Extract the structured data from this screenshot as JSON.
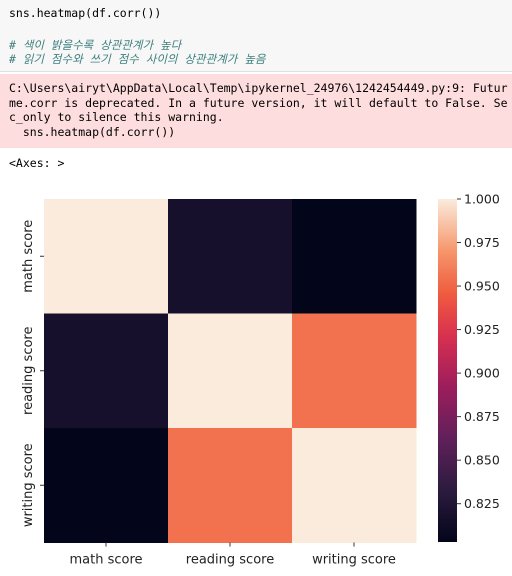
{
  "code": {
    "line1": "sns.heatmap(df.corr())",
    "comment1": "# 색이 밝을수록 상관관계가 높다",
    "comment2": "# 읽기 점수와 쓰기 점수 사이의 상관관계가 높음"
  },
  "stderr": {
    "line1": "C:\\Users\\airyt\\AppData\\Local\\Temp\\ipykernel_24976\\1242454449.py:9: Futur",
    "line2": "me.corr is deprecated. In a future version, it will default to False. Se",
    "line3": "c_only to silence this warning.",
    "line4": "  sns.heatmap(df.corr())"
  },
  "output": {
    "axes_repr": "<Axes: >"
  },
  "chart_data": {
    "type": "heatmap",
    "x_labels": [
      "math score",
      "reading score",
      "writing score"
    ],
    "y_labels": [
      "math score",
      "reading score",
      "writing score"
    ],
    "values": [
      [
        1.0,
        0.818,
        0.803
      ],
      [
        0.818,
        1.0,
        0.955
      ],
      [
        0.803,
        0.955,
        1.0
      ]
    ],
    "colorbar": {
      "min": 0.803,
      "max": 1.0,
      "ticks": [
        "0.825",
        "0.850",
        "0.875",
        "0.900",
        "0.925",
        "0.950",
        "0.975",
        "1.000"
      ]
    },
    "colormap": "rocket"
  }
}
